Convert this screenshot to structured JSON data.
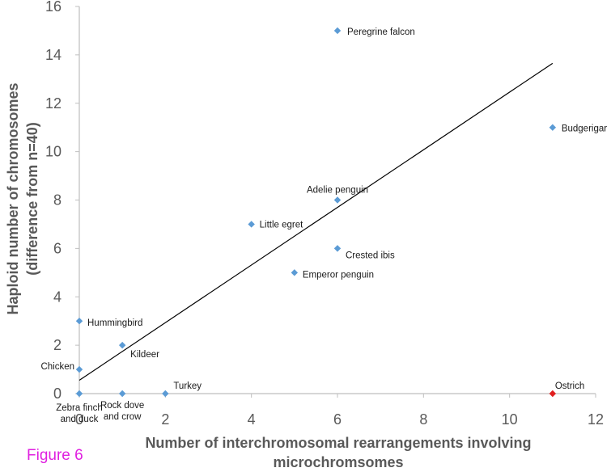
{
  "figure_label": "Figure 6",
  "chart_data": {
    "type": "scatter",
    "title": "",
    "xlabel_lines": [
      "Number of interchromosomal rearrangements involving",
      "microchromsomes"
    ],
    "ylabel_lines": [
      "Haploid number of chromosomes",
      "(difference from n=40)"
    ],
    "xlim": [
      0,
      12
    ],
    "ylim": [
      0,
      16
    ],
    "x_ticks": [
      0,
      2,
      4,
      6,
      8,
      10,
      12
    ],
    "y_ticks": [
      0,
      2,
      4,
      6,
      8,
      10,
      12,
      14,
      16
    ],
    "grid": false,
    "points": [
      {
        "label_lines": [
          "Peregrine falcon"
        ],
        "x": 6,
        "y": 15,
        "color": "#5b9bd5"
      },
      {
        "label_lines": [
          "Budgerigar"
        ],
        "x": 11,
        "y": 11,
        "color": "#5b9bd5"
      },
      {
        "label_lines": [
          "Adelie penguin"
        ],
        "x": 6,
        "y": 8,
        "color": "#5b9bd5"
      },
      {
        "label_lines": [
          "Little egret"
        ],
        "x": 4,
        "y": 7,
        "color": "#5b9bd5"
      },
      {
        "label_lines": [
          "Crested ibis"
        ],
        "x": 6,
        "y": 6,
        "color": "#5b9bd5"
      },
      {
        "label_lines": [
          "Emperor penguin"
        ],
        "x": 5,
        "y": 5,
        "color": "#5b9bd5"
      },
      {
        "label_lines": [
          "Hummingbird"
        ],
        "x": 0,
        "y": 3,
        "color": "#5b9bd5"
      },
      {
        "label_lines": [
          "Kildeer"
        ],
        "x": 1,
        "y": 2,
        "color": "#5b9bd5"
      },
      {
        "label_lines": [
          "Chicken"
        ],
        "x": 0,
        "y": 1,
        "color": "#5b9bd5"
      },
      {
        "label_lines": [
          "Zebra finch",
          "and duck"
        ],
        "x": 0,
        "y": 0,
        "color": "#5b9bd5"
      },
      {
        "label_lines": [
          "Rock dove",
          "and crow"
        ],
        "x": 1,
        "y": 0,
        "color": "#5b9bd5"
      },
      {
        "label_lines": [
          "Turkey"
        ],
        "x": 2,
        "y": 0,
        "color": "#5b9bd5"
      },
      {
        "label_lines": [
          "Ostrich"
        ],
        "x": 11,
        "y": 0,
        "color": "#e02020"
      }
    ],
    "trendline": {
      "type": "linear",
      "x_range": [
        0,
        11
      ],
      "y_start": 0.55,
      "y_end": 13.65,
      "color": "#000000"
    }
  }
}
